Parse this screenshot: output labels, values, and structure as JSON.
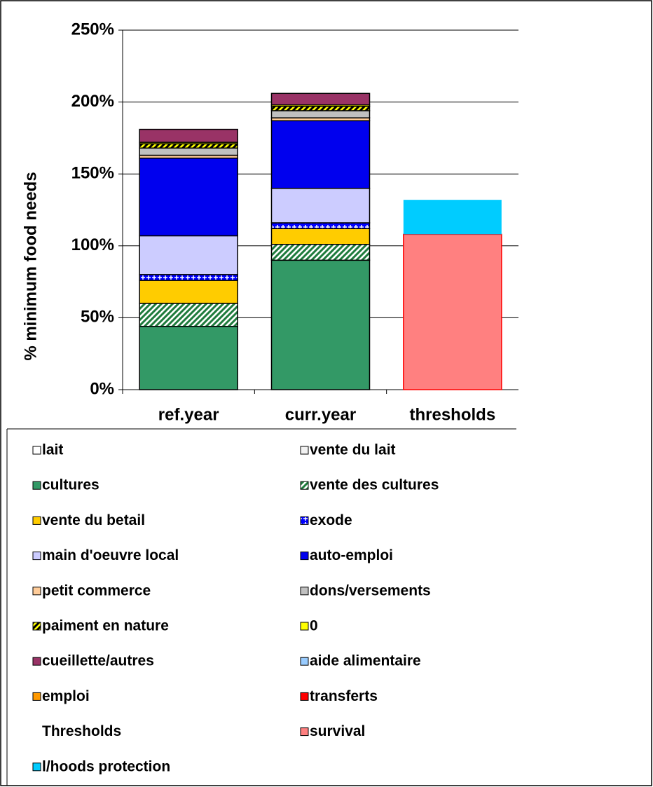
{
  "chart_data": {
    "type": "stacked_bar",
    "y_label": "% minimum food needs",
    "categories": [
      "ref.year",
      "curr.year",
      "thresholds"
    ],
    "ylim": [
      0,
      250
    ],
    "yticks": [
      {
        "value": 0,
        "label": "0%"
      },
      {
        "value": 50,
        "label": "50%"
      },
      {
        "value": 100,
        "label": "100%"
      },
      {
        "value": 150,
        "label": "150%"
      },
      {
        "value": 200,
        "label": "200%"
      },
      {
        "value": 250,
        "label": "250%"
      }
    ],
    "grid": true,
    "series": [
      {
        "name": "lait",
        "color": "#ffffff",
        "values": [
          null,
          null,
          null
        ]
      },
      {
        "name": "vente du lait",
        "color": "#f2f2f2",
        "values": [
          null,
          null,
          null
        ]
      },
      {
        "name": "cultures",
        "color": "#339966",
        "values": [
          44,
          90,
          null
        ]
      },
      {
        "name": "vente des cultures",
        "color": "#1e7b3c",
        "pattern": "hatch",
        "pattern_background": "#ffffff",
        "values": [
          16,
          11,
          null
        ]
      },
      {
        "name": "vente du betail",
        "color": "#ffcc00",
        "values": [
          16,
          11,
          null
        ]
      },
      {
        "name": "exode",
        "color": "#ffffff",
        "pattern": "cross",
        "pattern_background": "#0000ff",
        "values": [
          4,
          4,
          null
        ]
      },
      {
        "name": "main d'oeuvre local",
        "color": "#ccccff",
        "values": [
          27,
          24,
          null
        ]
      },
      {
        "name": "auto-emploi",
        "color": "#0000ee",
        "values": [
          54,
          47,
          null
        ]
      },
      {
        "name": "petit commerce",
        "color": "#ffcc99",
        "values": [
          2,
          2,
          null
        ]
      },
      {
        "name": "dons/versements",
        "color": "#c0c0c0",
        "values": [
          5,
          5,
          null
        ]
      },
      {
        "name": "paiment en nature",
        "color": "#000000",
        "pattern": "hatch",
        "pattern_background": "#ffff00",
        "values": [
          3,
          3,
          null
        ]
      },
      {
        "name": "0",
        "color": "#ffff00",
        "values": [
          1,
          1,
          null
        ]
      },
      {
        "name": "cueillette/autres",
        "color": "#993366",
        "values": [
          9,
          8,
          null
        ]
      },
      {
        "name": "aide alimentaire",
        "color": "#99ccff",
        "values": [
          null,
          null,
          null
        ]
      },
      {
        "name": "emploi",
        "color": "#ff9900",
        "values": [
          null,
          null,
          null
        ]
      },
      {
        "name": "transferts",
        "color": "#ff0000",
        "values": [
          null,
          null,
          null
        ]
      },
      {
        "name": "Thresholds",
        "values": [
          null,
          null,
          null
        ]
      },
      {
        "name": "survival",
        "color": "#ff8080",
        "edgecolor": "#ff0000",
        "values": [
          null,
          null,
          108
        ]
      },
      {
        "name": "l/hoods protection",
        "color": "#00ccff",
        "edgecolor": "none",
        "values": [
          null,
          null,
          24
        ]
      }
    ]
  }
}
